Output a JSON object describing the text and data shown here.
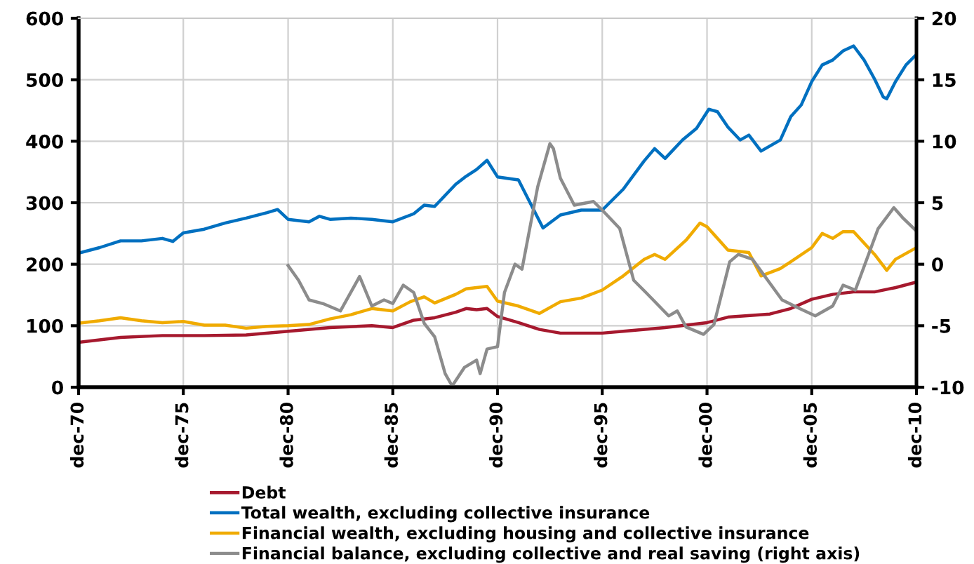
{
  "chart_data": {
    "type": "line",
    "xlim": [
      "1970-12",
      "2010-12"
    ],
    "xticks": [
      {
        "value": "1970-12",
        "label": "dec-70"
      },
      {
        "value": "1975-12",
        "label": "dec-75"
      },
      {
        "value": "1980-12",
        "label": "dec-80"
      },
      {
        "value": "1985-12",
        "label": "dec-85"
      },
      {
        "value": "1990-12",
        "label": "dec-90"
      },
      {
        "value": "1995-12",
        "label": "dec-95"
      },
      {
        "value": "2000-12",
        "label": "dec-00"
      },
      {
        "value": "2005-12",
        "label": "dec-05"
      },
      {
        "value": "2010-12",
        "label": "dec-10"
      }
    ],
    "ylim": [
      0,
      600
    ],
    "yticks": [
      0,
      100,
      200,
      300,
      400,
      500,
      600
    ],
    "y2lim": [
      -10,
      20
    ],
    "y2ticks": [
      -10,
      -5,
      0,
      5,
      10,
      15,
      20
    ],
    "grid": true,
    "legend": "bottom",
    "series": [
      {
        "name": "Debt",
        "color": "#a6192e",
        "x": [
          "1970-12",
          "1972-12",
          "1974-12",
          "1976-12",
          "1978-12",
          "1980-12",
          "1982-12",
          "1984-12",
          "1985-12",
          "1986-12",
          "1987-12",
          "1988-12",
          "1989-06",
          "1989-12",
          "1990-06",
          "1990-12",
          "1991-12",
          "1992-12",
          "1993-12",
          "1994-12",
          "1995-12",
          "1996-12",
          "1998-12",
          "2000-12",
          "2001-12",
          "2003-12",
          "2004-12",
          "2005-12",
          "2006-12",
          "2007-12",
          "2008-12",
          "2009-12",
          "2010-12"
        ],
        "values": [
          73,
          81,
          84,
          84,
          85,
          91,
          97,
          100,
          97,
          109,
          113,
          122,
          128,
          126,
          128,
          115,
          105,
          94,
          88,
          88,
          88,
          91,
          97,
          105,
          114,
          119,
          128,
          143,
          151,
          155,
          155,
          162,
          171
        ]
      },
      {
        "name": "Total wealth, excluding collective insurance",
        "color": "#0070c0",
        "x": [
          "1970-12",
          "1971-12",
          "1972-12",
          "1973-12",
          "1974-12",
          "1975-06",
          "1975-12",
          "1976-12",
          "1977-12",
          "1978-12",
          "1979-12",
          "1980-06",
          "1980-12",
          "1981-12",
          "1982-06",
          "1982-12",
          "1983-12",
          "1984-12",
          "1985-12",
          "1986-12",
          "1987-06",
          "1987-12",
          "1988-06",
          "1988-12",
          "1989-06",
          "1989-12",
          "1990-06",
          "1990-12",
          "1991-12",
          "1993-02",
          "1993-12",
          "1994-12",
          "1995-12",
          "1996-12",
          "1997-12",
          "1998-06",
          "1998-12",
          "1999-10",
          "2000-06",
          "2001-01",
          "2001-06",
          "2001-12",
          "2002-07",
          "2002-12",
          "2003-07",
          "2004-06",
          "2004-12",
          "2005-06",
          "2005-12",
          "2006-06",
          "2006-12",
          "2007-06",
          "2007-12",
          "2008-06",
          "2008-12",
          "2009-05",
          "2009-07",
          "2009-12",
          "2010-06",
          "2010-12"
        ],
        "values": [
          218,
          227,
          238,
          238,
          242,
          237,
          251,
          257,
          267,
          275,
          284,
          289,
          273,
          269,
          278,
          273,
          275,
          273,
          269,
          282,
          296,
          294,
          312,
          330,
          343,
          354,
          369,
          342,
          337,
          259,
          280,
          288,
          288,
          322,
          368,
          388,
          372,
          402,
          421,
          452,
          448,
          423,
          402,
          410,
          384,
          402,
          440,
          459,
          497,
          524,
          532,
          547,
          555,
          532,
          501,
          472,
          469,
          497,
          524,
          541
        ]
      },
      {
        "name": "Financial wealth, excluding housing and collective insurance",
        "color": "#f0ab00",
        "x": [
          "1970-12",
          "1971-12",
          "1972-12",
          "1973-12",
          "1974-12",
          "1975-12",
          "1976-12",
          "1977-12",
          "1978-12",
          "1979-12",
          "1980-12",
          "1981-12",
          "1982-12",
          "1983-12",
          "1984-12",
          "1985-12",
          "1986-10",
          "1987-06",
          "1987-12",
          "1988-12",
          "1989-06",
          "1990-06",
          "1990-12",
          "1991-12",
          "1992-12",
          "1993-12",
          "1994-12",
          "1995-12",
          "1996-12",
          "1997-12",
          "1998-06",
          "1998-12",
          "1999-12",
          "2000-08",
          "2000-12",
          "2001-12",
          "2002-12",
          "2003-07",
          "2004-06",
          "2004-12",
          "2005-12",
          "2006-06",
          "2006-12",
          "2007-06",
          "2007-12",
          "2008-12",
          "2009-07",
          "2009-12",
          "2010-12"
        ],
        "values": [
          104,
          108,
          113,
          108,
          105,
          107,
          101,
          101,
          96,
          99,
          100,
          102,
          111,
          118,
          128,
          124,
          139,
          147,
          137,
          151,
          160,
          164,
          140,
          132,
          120,
          139,
          145,
          158,
          181,
          208,
          216,
          208,
          239,
          267,
          261,
          223,
          219,
          181,
          193,
          204,
          227,
          250,
          242,
          253,
          253,
          216,
          190,
          208,
          227
        ]
      },
      {
        "name": "Financial balance, excluding collective and real saving (right axis)",
        "color": "#8c8c8c",
        "axis": "y2",
        "x": [
          "1980-12",
          "1981-06",
          "1981-12",
          "1982-08",
          "1983-06",
          "1984-05",
          "1984-12",
          "1985-07",
          "1985-12",
          "1986-06",
          "1986-12",
          "1987-06",
          "1987-12",
          "1988-06",
          "1988-10",
          "1989-05",
          "1989-12",
          "1990-02",
          "1990-06",
          "1990-12",
          "1991-04",
          "1991-10",
          "1992-02",
          "1992-11",
          "1993-06",
          "1993-08",
          "1993-12",
          "1994-08",
          "1995-07",
          "1995-12",
          "1996-10",
          "1997-06",
          "1998-01",
          "1999-02",
          "1999-07",
          "1999-12",
          "2000-10",
          "2001-04",
          "2002-01",
          "2002-06",
          "2003-02",
          "2004-07",
          "2005-05",
          "2006-02",
          "2006-12",
          "2007-06",
          "2008-01",
          "2009-02",
          "2009-11",
          "2010-04",
          "2010-12"
        ],
        "values": [
          -0.1,
          -1.3,
          -2.9,
          -3.2,
          -3.8,
          -1.0,
          -3.4,
          -2.9,
          -3.2,
          -1.7,
          -2.3,
          -4.8,
          -5.9,
          -8.9,
          -9.9,
          -8.4,
          -7.8,
          -8.9,
          -6.9,
          -6.7,
          -2.3,
          0,
          -0.4,
          6.3,
          9.8,
          9.4,
          7.0,
          4.8,
          5.1,
          4.4,
          2.9,
          -1.3,
          -2.3,
          -4.2,
          -3.8,
          -5.1,
          -5.7,
          -4.9,
          0.2,
          0.8,
          0.4,
          -2.9,
          -3.6,
          -4.2,
          -3.4,
          -1.7,
          -2.1,
          2.9,
          4.6,
          3.8,
          2.7
        ]
      }
    ]
  }
}
